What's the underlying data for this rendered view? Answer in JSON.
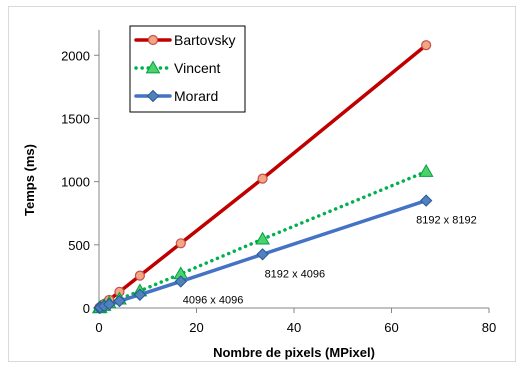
{
  "chart_data": {
    "type": "line",
    "xlabel": "Nombre de pixels (MPixel)",
    "ylabel": "Temps (ms)",
    "xlim": [
      0,
      80
    ],
    "ylim": [
      0,
      2200
    ],
    "x_ticks": [
      0,
      20,
      40,
      60,
      80
    ],
    "y_ticks": [
      0,
      500,
      1000,
      1500,
      2000
    ],
    "grid": false,
    "legend_position": "top-left",
    "series": [
      {
        "name": "Bartovsky",
        "color": "#c00000",
        "marker": "circle",
        "line_style": "solid",
        "x": [
          0.065536,
          0.262144,
          1.048576,
          2.097152,
          4.194304,
          8.388608,
          16.777216,
          33.554432,
          67.108864
        ],
        "y": [
          2,
          8,
          32,
          64,
          128,
          256,
          512,
          1024,
          2080
        ]
      },
      {
        "name": "Vincent",
        "color": "#00b050",
        "marker": "triangle",
        "line_style": "dotted",
        "x": [
          0.065536,
          0.262144,
          1.048576,
          2.097152,
          4.194304,
          8.388608,
          16.777216,
          33.554432,
          67.108864
        ],
        "y": [
          1,
          5,
          20,
          40,
          70,
          135,
          270,
          545,
          1080
        ]
      },
      {
        "name": "Morard",
        "color": "#4472c4",
        "marker": "diamond",
        "line_style": "solid",
        "x": [
          0.065536,
          0.262144,
          1.048576,
          2.097152,
          4.194304,
          8.388608,
          16.777216,
          33.554432,
          67.108864
        ],
        "y": [
          1,
          4,
          15,
          30,
          55,
          105,
          210,
          425,
          850
        ]
      }
    ],
    "annotations": [
      {
        "text": "4096 x 4096",
        "x": 16.777216,
        "y": 210
      },
      {
        "text": "8192 x 4096",
        "x": 33.554432,
        "y": 425
      },
      {
        "text": "8192 x 8192",
        "x": 67.108864,
        "y": 850
      }
    ]
  }
}
